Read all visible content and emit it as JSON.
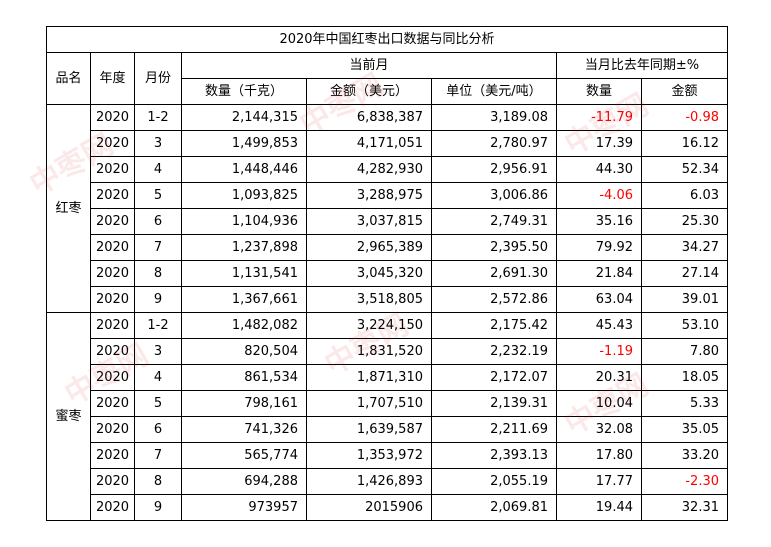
{
  "title": "2020年中国红枣出口数据与同比分析",
  "headers": {
    "product": "品名",
    "year": "年度",
    "month": "月份",
    "current": "当前月",
    "yoy": "当月比去年同期±%",
    "qty": "数量（千克）",
    "amount": "金额（美元）",
    "unit_price": "单位（美元/吨）",
    "yoy_qty": "数量",
    "yoy_amount": "金额"
  },
  "groups": [
    {
      "name": "红枣",
      "rows": [
        {
          "year": "2020",
          "month": "1-2",
          "qty": "2,144,315",
          "amount": "6,838,387",
          "unit": "3,189.08",
          "yq": "-11.79",
          "ya": "-0.98"
        },
        {
          "year": "2020",
          "month": "3",
          "qty": "1,499,853",
          "amount": "4,171,051",
          "unit": "2,780.97",
          "yq": "17.39",
          "ya": "16.12"
        },
        {
          "year": "2020",
          "month": "4",
          "qty": "1,448,446",
          "amount": "4,282,930",
          "unit": "2,956.91",
          "yq": "44.30",
          "ya": "52.34"
        },
        {
          "year": "2020",
          "month": "5",
          "qty": "1,093,825",
          "amount": "3,288,975",
          "unit": "3,006.86",
          "yq": "-4.06",
          "ya": "6.03"
        },
        {
          "year": "2020",
          "month": "6",
          "qty": "1,104,936",
          "amount": "3,037,815",
          "unit": "2,749.31",
          "yq": "35.16",
          "ya": "25.30"
        },
        {
          "year": "2020",
          "month": "7",
          "qty": "1,237,898",
          "amount": "2,965,389",
          "unit": "2,395.50",
          "yq": "79.92",
          "ya": "34.27"
        },
        {
          "year": "2020",
          "month": "8",
          "qty": "1,131,541",
          "amount": "3,045,320",
          "unit": "2,691.30",
          "yq": "21.84",
          "ya": "27.14"
        },
        {
          "year": "2020",
          "month": "9",
          "qty": "1,367,661",
          "amount": "3,518,805",
          "unit": "2,572.86",
          "yq": "63.04",
          "ya": "39.01"
        }
      ]
    },
    {
      "name": "蜜枣",
      "rows": [
        {
          "year": "2020",
          "month": "1-2",
          "qty": "1,482,082",
          "amount": "3,224,150",
          "unit": "2,175.42",
          "yq": "45.43",
          "ya": "53.10"
        },
        {
          "year": "2020",
          "month": "3",
          "qty": "820,504",
          "amount": "1,831,520",
          "unit": "2,232.19",
          "yq": "-1.19",
          "ya": "7.80"
        },
        {
          "year": "2020",
          "month": "4",
          "qty": "861,534",
          "amount": "1,871,310",
          "unit": "2,172.07",
          "yq": "20.31",
          "ya": "18.05"
        },
        {
          "year": "2020",
          "month": "5",
          "qty": "798,161",
          "amount": "1,707,510",
          "unit": "2,139.31",
          "yq": "10.04",
          "ya": "5.33"
        },
        {
          "year": "2020",
          "month": "6",
          "qty": "741,326",
          "amount": "1,639,587",
          "unit": "2,211.69",
          "yq": "32.08",
          "ya": "35.05"
        },
        {
          "year": "2020",
          "month": "7",
          "qty": "565,774",
          "amount": "1,353,972",
          "unit": "2,393.13",
          "yq": "17.80",
          "ya": "33.20"
        },
        {
          "year": "2020",
          "month": "8",
          "qty": "694,288",
          "amount": "1,426,893",
          "unit": "2,055.19",
          "yq": "17.77",
          "ya": "-2.30"
        },
        {
          "year": "2020",
          "month": "9",
          "qty": "973957",
          "amount": "2015906",
          "unit": "2,069.81",
          "yq": "19.44",
          "ya": "32.31"
        }
      ]
    }
  ],
  "watermark": "中枣网",
  "negative_color": "#ff0000"
}
